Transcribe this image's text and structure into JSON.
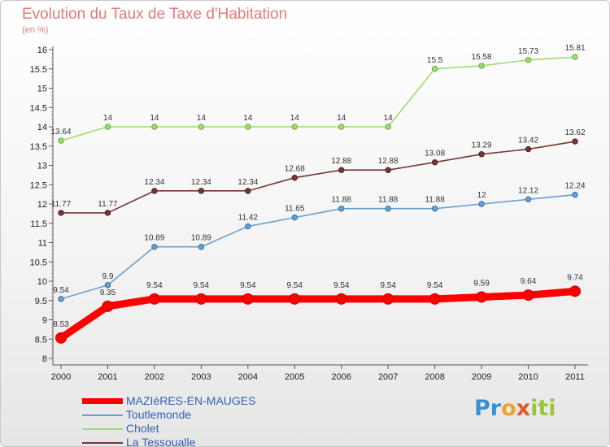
{
  "header": {
    "title": "Evolution du Taux de Taxe d'Habitation",
    "unit": "(en %)"
  },
  "chart_data": {
    "type": "line",
    "title": "Evolution du Taux de Taxe d'Habitation",
    "ylabel": "(en %)",
    "xlabel": "",
    "x": [
      "2000",
      "2001",
      "2002",
      "2003",
      "2004",
      "2005",
      "2006",
      "2007",
      "2008",
      "2009",
      "2010",
      "2011"
    ],
    "ylim": [
      8,
      16
    ],
    "yticks": [
      "8",
      "8.5",
      "9",
      "9.5",
      "10",
      "10.5",
      "11",
      "11.5",
      "12",
      "12.5",
      "13",
      "13.5",
      "14",
      "14.5",
      "15",
      "15.5",
      "16"
    ],
    "grid": false,
    "legend_position": "bottom-left",
    "series": [
      {
        "name": "MAZIèRES-EN-MAUGES",
        "color": "#ff0000",
        "values": [
          8.53,
          9.35,
          9.54,
          9.54,
          9.54,
          9.54,
          9.54,
          9.54,
          9.54,
          9.59,
          9.64,
          9.74
        ],
        "labels": [
          "8.53",
          "9.35",
          "9.54",
          "9.54",
          "9.54",
          "9.54",
          "9.54",
          "9.54",
          "9.54",
          "9.59",
          "9.64",
          "9.74"
        ]
      },
      {
        "name": "Toutlemonde",
        "color": "#6aa0cf",
        "values": [
          9.54,
          9.9,
          10.89,
          10.89,
          11.42,
          11.65,
          11.88,
          11.88,
          11.88,
          12,
          12.12,
          12.24
        ],
        "labels": [
          "9.54",
          "9.9",
          "10.89",
          "10.89",
          "11.42",
          "11.65",
          "11.88",
          "11.88",
          "11.88",
          "12",
          "12.12",
          "12.24"
        ]
      },
      {
        "name": "Cholet",
        "color": "#9ddc6e",
        "values": [
          13.64,
          14,
          14,
          14,
          14,
          14,
          14,
          14,
          15.5,
          15.58,
          15.73,
          15.81
        ],
        "labels": [
          "13.64",
          "14",
          "14",
          "14",
          "14",
          "14",
          "14",
          "14",
          "15.5",
          "15.58",
          "15.73",
          "15.81"
        ]
      },
      {
        "name": "La Tessoualle",
        "color": "#7a3535",
        "values": [
          11.77,
          11.77,
          12.34,
          12.34,
          12.34,
          12.68,
          12.88,
          12.88,
          13.08,
          13.29,
          13.42,
          13.62
        ],
        "labels": [
          "11.77",
          "11.77",
          "12.34",
          "12.34",
          "12.34",
          "12.68",
          "12.88",
          "12.88",
          "13.08",
          "13.29",
          "13.42",
          "13.62"
        ]
      }
    ]
  },
  "logo": {
    "parts": [
      "Pr",
      "o",
      "x",
      "iti"
    ]
  }
}
